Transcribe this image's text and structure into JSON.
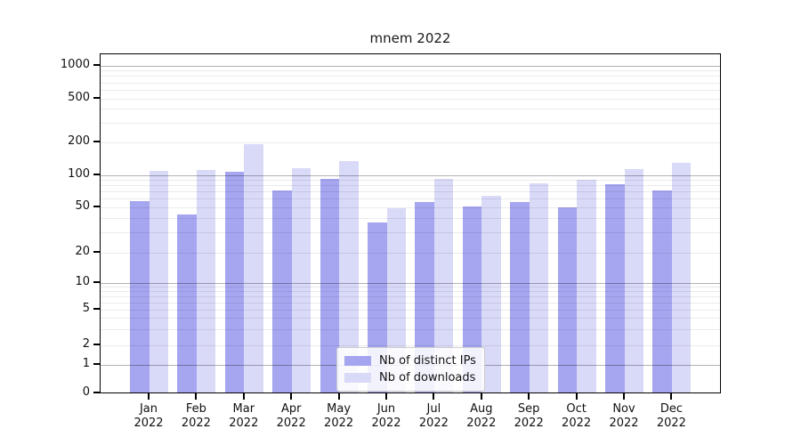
{
  "title_text": "mnem 2022",
  "chart_data": {
    "type": "bar",
    "title": "mnem 2022",
    "x_categories": [
      "Jan",
      "Feb",
      "Mar",
      "Apr",
      "May",
      "Jun",
      "Jul",
      "Aug",
      "Sep",
      "Oct",
      "Nov",
      "Dec"
    ],
    "x_year": "2022",
    "series": [
      {
        "name": "Nb of distinct IPs",
        "color": "#a5a5f0",
        "values": [
          57,
          43,
          108,
          72,
          93,
          37,
          56,
          51,
          56,
          50,
          83,
          72
        ]
      },
      {
        "name": "Nb of downloads",
        "color": "#d9d9f8",
        "values": [
          110,
          112,
          192,
          116,
          136,
          49,
          93,
          64,
          84,
          90,
          114,
          129
        ]
      }
    ],
    "y_ticks": [
      0,
      1,
      2,
      5,
      10,
      20,
      50,
      100,
      200,
      500,
      1000
    ],
    "yscale": "symlog",
    "ylim": [
      0,
      1300
    ],
    "grid": true,
    "legend_position": "lower center"
  },
  "colors": {
    "bar_dark": "#a5a5f0",
    "bar_light": "#d9d9f8",
    "axis": "#000000",
    "grid_major": "rgba(0,0,0,0.30)",
    "grid_minor": "rgba(0,0,0,0.08)"
  }
}
